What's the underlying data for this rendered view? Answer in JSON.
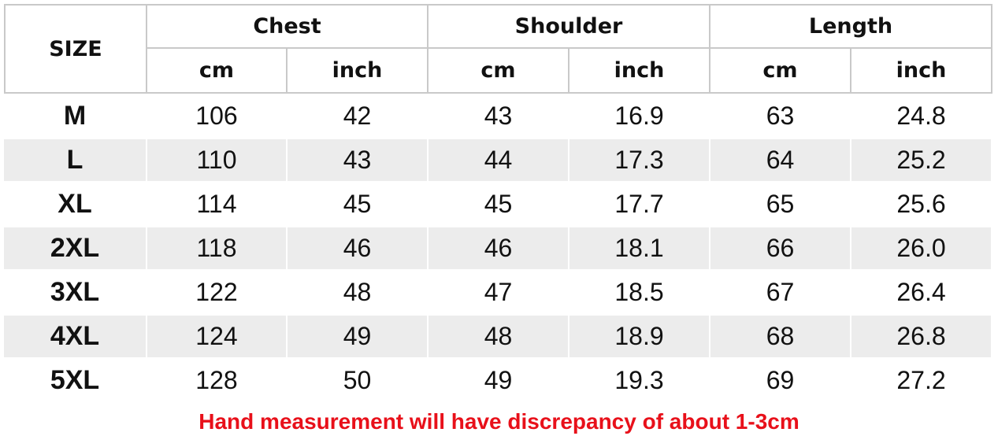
{
  "table": {
    "size_header": "SIZE",
    "groups": [
      "Chest",
      "Shoulder",
      "Length"
    ],
    "units": [
      "cm",
      "inch",
      "cm",
      "inch",
      "cm",
      "inch"
    ],
    "rows": [
      [
        "M",
        "106",
        "42",
        "43",
        "16.9",
        "63",
        "24.8"
      ],
      [
        "L",
        "110",
        "43",
        "44",
        "17.3",
        "64",
        "25.2"
      ],
      [
        "XL",
        "114",
        "45",
        "45",
        "17.7",
        "65",
        "25.6"
      ],
      [
        "2XL",
        "118",
        "46",
        "46",
        "18.1",
        "66",
        "26.0"
      ],
      [
        "3XL",
        "122",
        "48",
        "47",
        "18.5",
        "67",
        "26.4"
      ],
      [
        "4XL",
        "124",
        "49",
        "48",
        "18.9",
        "68",
        "26.8"
      ],
      [
        "5XL",
        "128",
        "50",
        "49",
        "19.3",
        "69",
        "27.2"
      ]
    ]
  },
  "note": "Hand measurement will have discrepancy of about 1-3cm"
}
